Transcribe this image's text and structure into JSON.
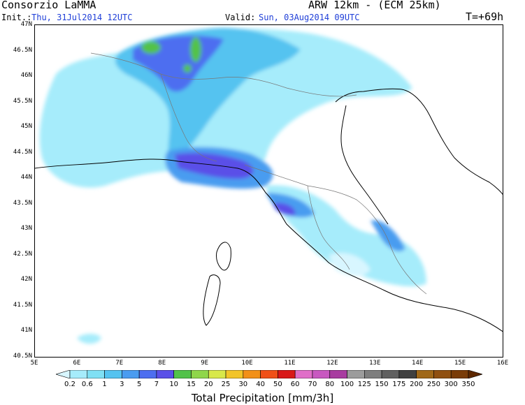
{
  "header": {
    "org": "Consorzio LaMMA",
    "model": "ARW 12km - (ECM 25km)",
    "init_label": "Init.:",
    "init_value": "Thu, 31Jul2014 12UTC",
    "valid_label": "Valid:",
    "valid_value": "Sun, 03Aug2014 09UTC",
    "lead_time": "T=+69h"
  },
  "map": {
    "lat_labels": [
      "47N",
      "46.5N",
      "46N",
      "45.5N",
      "45N",
      "44.5N",
      "44N",
      "43.5N",
      "43N",
      "42.5N",
      "42N",
      "41.5N",
      "41N",
      "40.5N"
    ],
    "lon_labels": [
      "5E",
      "6E",
      "7E",
      "8E",
      "9E",
      "10E",
      "11E",
      "12E",
      "13E",
      "14E",
      "15E",
      "16E"
    ]
  },
  "colorbar": {
    "title": "Total Precipitation [mm/3h]",
    "labels": [
      "0.2",
      "0.6",
      "1",
      "3",
      "5",
      "7",
      "10",
      "15",
      "20",
      "25",
      "30",
      "40",
      "50",
      "60",
      "70",
      "80",
      "100",
      "125",
      "150",
      "175",
      "200",
      "250",
      "300",
      "350"
    ],
    "colors": [
      "#d8f6ff",
      "#a6ecfb",
      "#7fe0f4",
      "#55c3f0",
      "#4a9cf0",
      "#4d6ef0",
      "#5a4fe8",
      "#52c24a",
      "#8fd64a",
      "#d8e84a",
      "#f2c428",
      "#f29018",
      "#f05018",
      "#d81818",
      "#e06ec8",
      "#c858c0",
      "#a83ca0",
      "#9c9c9c",
      "#7e7e7e",
      "#606060",
      "#404040",
      "#a06818",
      "#905010",
      "#7a3c08",
      "#5e2800"
    ]
  }
}
